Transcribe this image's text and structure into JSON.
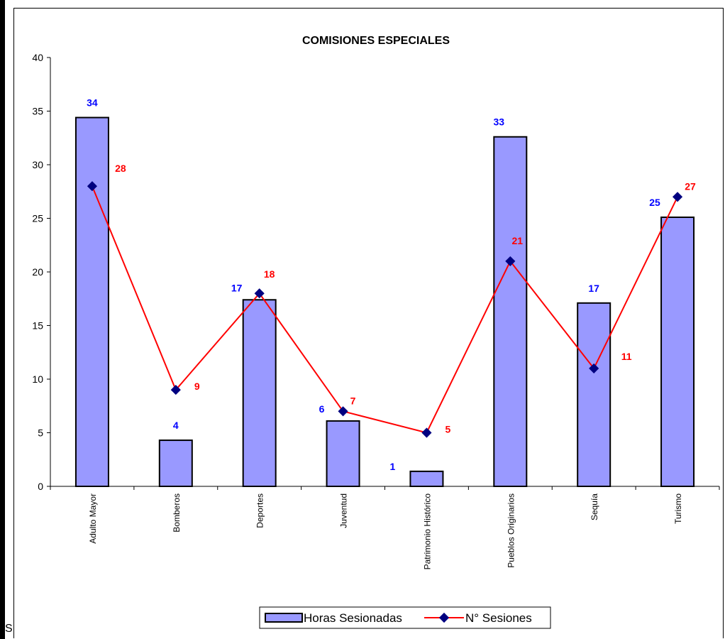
{
  "chart_data": {
    "type": "bar",
    "title": "COMISIONES ESPECIALES",
    "xlabel": "",
    "ylabel": "",
    "ylim": [
      0,
      40
    ],
    "yticks": [
      0,
      5,
      10,
      15,
      20,
      25,
      30,
      35,
      40
    ],
    "categories": [
      "Adulto Mayor",
      "Bomberos",
      "Deportes",
      "Juventud",
      "Patrimonio Histórico",
      "Pueblos Originarios",
      "Sequía",
      "Turismo"
    ],
    "series": [
      {
        "name": "Horas Sesionadas",
        "type": "bar",
        "values": [
          34.4,
          4.3,
          17.4,
          6.1,
          1.4,
          32.6,
          17.1,
          25.1
        ],
        "labels": [
          "34",
          "4",
          "17",
          "6",
          "1",
          "33",
          "17",
          "25"
        ],
        "color": "#9999ff",
        "label_color": "#0000ff"
      },
      {
        "name": "N° Sesiones",
        "type": "line",
        "values": [
          28,
          9,
          18,
          7,
          5,
          21,
          11,
          27
        ],
        "labels": [
          "28",
          "9",
          "18",
          "7",
          "5",
          "21",
          "11",
          "27"
        ],
        "color": "#ff0000",
        "marker_color": "#000080",
        "label_color": "#ff0000"
      }
    ],
    "legend": "bottom",
    "grid": false
  },
  "page": {
    "stray_char": "S"
  }
}
